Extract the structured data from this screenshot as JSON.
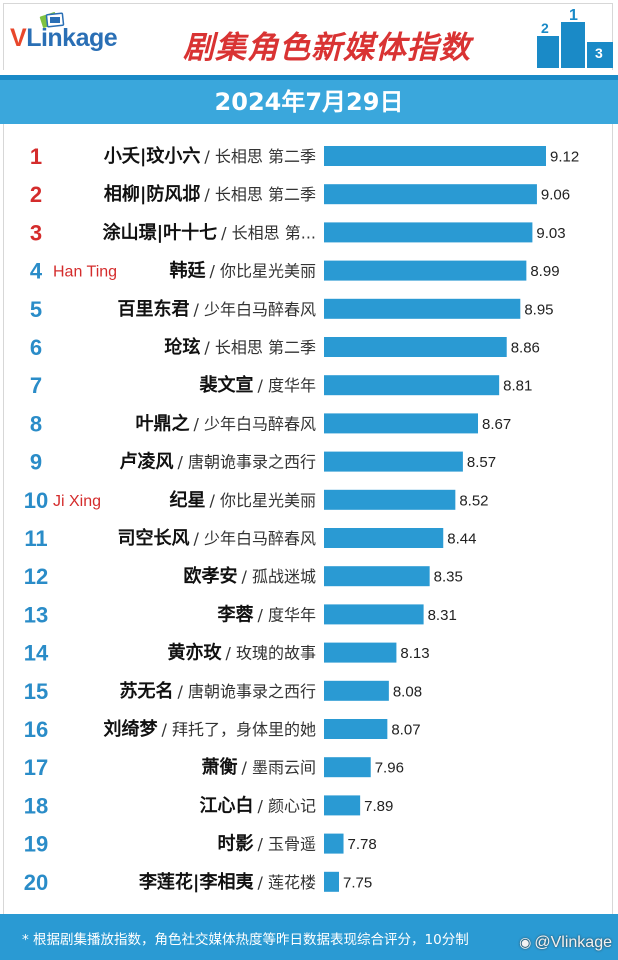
{
  "header": {
    "logo_text": "VLinkage",
    "title": "剧集角色新媒体指数",
    "date": "2024年7月29日"
  },
  "colors": {
    "bar": "#2a9ad3",
    "rank_top3": "#d42c2c",
    "rank_rest": "#2a8cc8",
    "header_blue": "#3aa7dc",
    "title_red": "#d93333",
    "annotation": "#d42c2c"
  },
  "chart_data": {
    "type": "bar",
    "orientation": "horizontal",
    "title": "剧集角色新媒体指数",
    "rows": [
      {
        "rank": "1",
        "name": "小夭|玟小六",
        "drama": "/ 长相思 第二季",
        "value": 9.12
      },
      {
        "rank": "2",
        "name": "相柳|防风邶",
        "drama": "/ 长相思 第二季",
        "value": 9.06
      },
      {
        "rank": "3",
        "name": "涂山璟|叶十七",
        "drama": "/ 长相思 第...",
        "value": 9.03
      },
      {
        "rank": "4",
        "name": "韩廷",
        "drama": "/ 你比星光美丽",
        "value": 8.99
      },
      {
        "rank": "5",
        "name": "百里东君",
        "drama": "/ 少年白马醉春风",
        "value": 8.95
      },
      {
        "rank": "6",
        "name": "玱玹",
        "drama": "/ 长相思 第二季",
        "value": 8.86
      },
      {
        "rank": "7",
        "name": "裴文宣",
        "drama": "/ 度华年",
        "value": 8.81
      },
      {
        "rank": "8",
        "name": "叶鼎之",
        "drama": "/ 少年白马醉春风",
        "value": 8.67
      },
      {
        "rank": "9",
        "name": "卢凌风",
        "drama": "/ 唐朝诡事录之西行",
        "value": 8.57
      },
      {
        "rank": "10",
        "name": "纪星",
        "drama": "/ 你比星光美丽",
        "value": 8.52
      },
      {
        "rank": "11",
        "name": "司空长风",
        "drama": "/ 少年白马醉春风",
        "value": 8.44
      },
      {
        "rank": "12",
        "name": "欧孝安",
        "drama": "/ 孤战迷城",
        "value": 8.35
      },
      {
        "rank": "13",
        "name": "李蓉",
        "drama": "/ 度华年",
        "value": 8.31
      },
      {
        "rank": "14",
        "name": "黄亦玫",
        "drama": "/ 玫瑰的故事",
        "value": 8.13
      },
      {
        "rank": "15",
        "name": "苏无名",
        "drama": "/ 唐朝诡事录之西行",
        "value": 8.08
      },
      {
        "rank": "16",
        "name": "刘绮梦",
        "drama": "/ 拜托了，身体里的她",
        "value": 8.07
      },
      {
        "rank": "17",
        "name": "萧衡",
        "drama": "/ 墨雨云间",
        "value": 7.96
      },
      {
        "rank": "18",
        "name": "江心白",
        "drama": "/ 颜心记",
        "value": 7.89
      },
      {
        "rank": "19",
        "name": "时影",
        "drama": "/ 玉骨遥",
        "value": 7.78
      },
      {
        "rank": "20",
        "name": "李莲花|李相夷",
        "drama": "/ 莲花楼",
        "value": 7.75
      }
    ],
    "annotations": [
      {
        "row": 4,
        "text": "Han Ting"
      },
      {
        "row": 10,
        "text": "Ji Xing"
      }
    ],
    "value_labels": true,
    "grid": false,
    "legend": "none"
  },
  "footer": {
    "note": "* 根据剧集播放指数，角色社交媒体热度等昨日数据表现综合评分，10分制",
    "watermark": "@Vlinkage"
  }
}
